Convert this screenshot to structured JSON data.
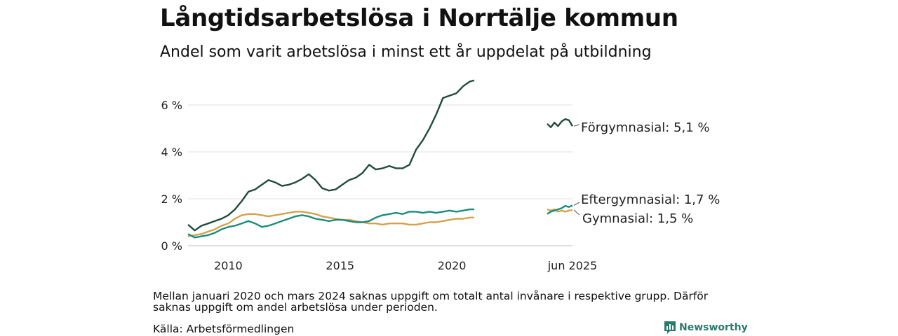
{
  "title": "Långtidsarbetslösa i Norrtälje kommun",
  "subtitle": "Andel som varit arbetslösa i minst ett år uppdelat på utbildning",
  "note": "Mellan januari 2020 och mars 2024 saknas uppgift om totalt antal invånare i respektive grupp. Därför saknas uppgift om andel arbetslösa under perioden.",
  "source": "Källa: Arbetsförmedlingen",
  "brand": "Newsworthy",
  "chart_data": {
    "type": "line",
    "y_ticks": [
      "0 %",
      "2 %",
      "4 %",
      "6 %"
    ],
    "x_ticks": [
      "2010",
      "2015",
      "2020"
    ],
    "recent_label": "jun 2025",
    "ylim": [
      0,
      7
    ],
    "grid": true,
    "x_main": [
      2008.2,
      2008.5,
      2008.8,
      2009.1,
      2009.4,
      2009.7,
      2010.0,
      2010.3,
      2010.6,
      2010.9,
      2011.2,
      2011.5,
      2011.8,
      2012.1,
      2012.4,
      2012.7,
      2013.0,
      2013.3,
      2013.6,
      2013.9,
      2014.2,
      2014.5,
      2014.8,
      2015.1,
      2015.4,
      2015.7,
      2016.0,
      2016.3,
      2016.6,
      2016.9,
      2017.2,
      2017.5,
      2017.8,
      2018.1,
      2018.4,
      2018.7,
      2019.0,
      2019.3,
      2019.6,
      2019.9,
      2020.2,
      2020.5,
      2020.8,
      2021.0
    ],
    "x_recent": [
      2024.75,
      2024.85,
      2024.95,
      2025.05,
      2025.15,
      2025.25,
      2025.35,
      2025.45
    ],
    "series": [
      {
        "name": "Förgymnasial",
        "end_label": "Förgymnasial: 5,1 %",
        "color": "#1f4a3d",
        "values": [
          0.9,
          0.65,
          0.85,
          0.95,
          1.05,
          1.15,
          1.3,
          1.55,
          1.9,
          2.3,
          2.4,
          2.6,
          2.8,
          2.7,
          2.55,
          2.6,
          2.7,
          2.85,
          3.05,
          2.8,
          2.45,
          2.35,
          2.4,
          2.6,
          2.8,
          2.9,
          3.1,
          3.45,
          3.25,
          3.3,
          3.4,
          3.3,
          3.3,
          3.45,
          4.1,
          4.5,
          5.0,
          5.6,
          6.3,
          6.4,
          6.5,
          6.8,
          7.0,
          7.05
        ],
        "recent": [
          5.2,
          5.05,
          5.25,
          5.1,
          5.3,
          5.4,
          5.35,
          5.1
        ]
      },
      {
        "name": "Eftergymnasial",
        "end_label": "Eftergymnasial: 1,7 %",
        "color": "#1a8c7a",
        "values": [
          0.5,
          0.35,
          0.4,
          0.45,
          0.55,
          0.7,
          0.8,
          0.85,
          0.95,
          1.05,
          0.95,
          0.8,
          0.85,
          0.95,
          1.05,
          1.15,
          1.25,
          1.3,
          1.25,
          1.15,
          1.1,
          1.05,
          1.1,
          1.1,
          1.05,
          1.0,
          1.0,
          1.05,
          1.2,
          1.3,
          1.35,
          1.4,
          1.35,
          1.45,
          1.45,
          1.4,
          1.45,
          1.4,
          1.45,
          1.5,
          1.45,
          1.5,
          1.55,
          1.55
        ],
        "recent": [
          1.35,
          1.45,
          1.5,
          1.55,
          1.6,
          1.7,
          1.65,
          1.72
        ]
      },
      {
        "name": "Gymnasial",
        "end_label": "Gymnasial: 1,5 %",
        "color": "#d4a24c",
        "values": [
          0.4,
          0.45,
          0.5,
          0.6,
          0.7,
          0.85,
          0.95,
          1.15,
          1.3,
          1.35,
          1.35,
          1.3,
          1.25,
          1.3,
          1.35,
          1.4,
          1.45,
          1.45,
          1.4,
          1.35,
          1.25,
          1.2,
          1.15,
          1.1,
          1.1,
          1.05,
          1.0,
          0.95,
          0.95,
          0.9,
          0.95,
          0.95,
          0.95,
          0.9,
          0.9,
          0.95,
          1.0,
          1.0,
          1.05,
          1.1,
          1.15,
          1.15,
          1.2,
          1.2
        ],
        "recent": [
          1.55,
          1.5,
          1.55,
          1.45,
          1.5,
          1.45,
          1.5,
          1.52
        ]
      }
    ]
  }
}
